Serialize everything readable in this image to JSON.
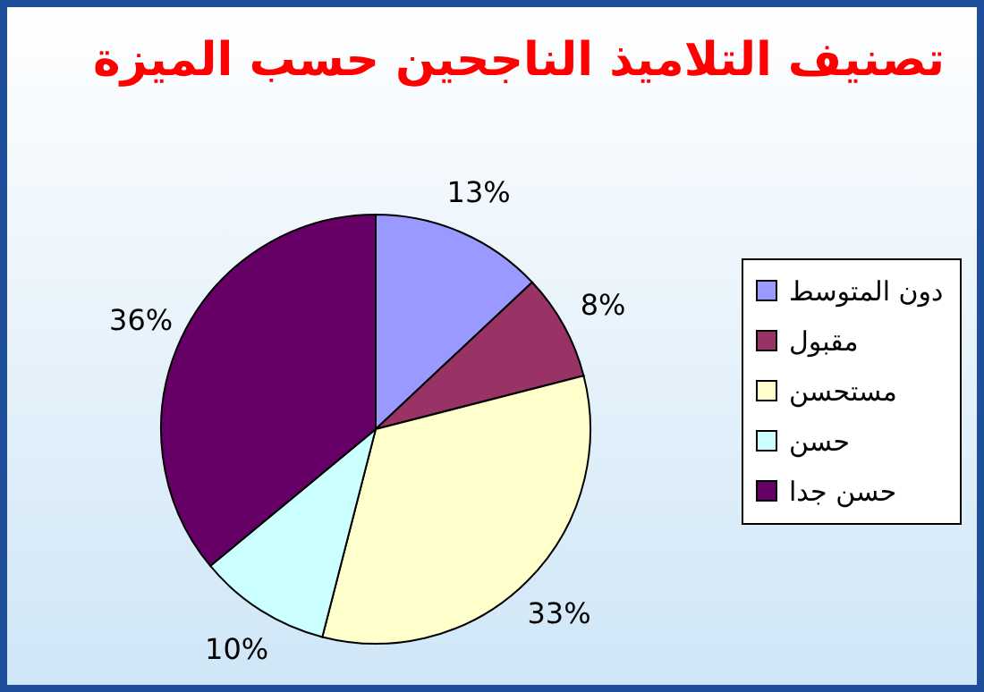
{
  "chart_data": {
    "type": "pie",
    "title": "تصنيف التلاميذ الناجحين حسب الميزة",
    "categories": [
      "دون المتوسط",
      "مقبول",
      "مستحسن",
      "حسن",
      "حسن جدا"
    ],
    "values": [
      13,
      8,
      33,
      10,
      36
    ],
    "colors": [
      "#9999ff",
      "#993366",
      "#ffffcc",
      "#ccffff",
      "#660066"
    ],
    "value_labels": [
      "13%",
      "8%",
      "33%",
      "10%",
      "36%"
    ],
    "legend": "right"
  }
}
